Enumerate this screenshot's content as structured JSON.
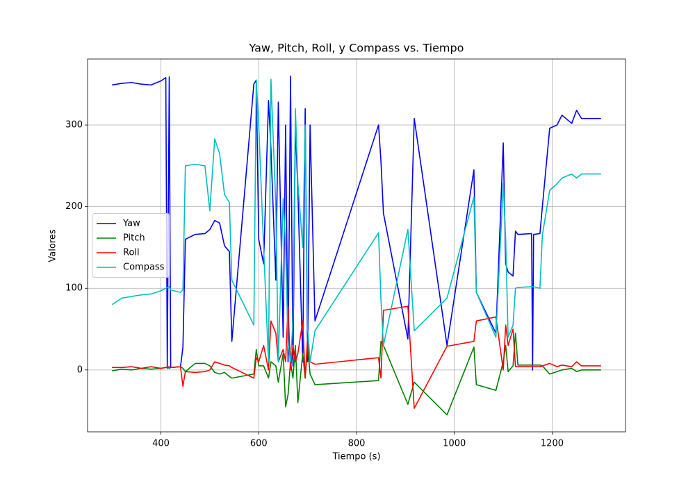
{
  "chart_data": {
    "type": "line",
    "title": "Yaw, Pitch, Roll, y Compass vs. Tiempo",
    "x_label": "Tiempo (s)",
    "y_label": "Valores",
    "x": [
      300,
      320,
      340,
      360,
      380,
      400,
      410,
      413,
      417,
      420,
      440,
      445,
      450,
      470,
      490,
      500,
      510,
      520,
      530,
      540,
      545,
      590,
      595,
      600,
      610,
      620,
      625,
      635,
      640,
      650,
      655,
      660,
      665,
      670,
      675,
      680,
      690,
      695,
      700,
      705,
      715,
      845,
      850,
      855,
      905,
      918,
      985,
      1040,
      1045,
      1085,
      1100,
      1105,
      1110,
      1120,
      1125,
      1130,
      1158,
      1160,
      1162,
      1175,
      1180,
      1195,
      1210,
      1220,
      1240,
      1250,
      1260,
      1300
    ],
    "series": [
      {
        "name": "Yaw",
        "color": "#0000ff",
        "values": [
          349,
          351,
          352,
          350,
          349,
          354,
          358,
          2,
          359,
          3,
          4,
          28,
          160,
          166,
          167,
          172,
          183,
          180,
          152,
          145,
          35,
          350,
          355,
          160,
          130,
          330,
          270,
          110,
          328,
          40,
          300,
          10,
          360,
          5,
          300,
          220,
          10,
          320,
          10,
          300,
          60,
          300,
          255,
          192,
          38,
          308,
          30,
          245,
          95,
          45,
          278,
          130,
          120,
          115,
          170,
          166,
          167,
          0,
          166,
          167,
          200,
          296,
          300,
          312,
          302,
          318,
          308,
          308
        ]
      },
      {
        "name": "Pitch",
        "color": "#008000",
        "values": [
          -1,
          1,
          0,
          2,
          1,
          2,
          3,
          4,
          2,
          3,
          4,
          2,
          -2,
          8,
          8,
          5,
          -3,
          -5,
          -3,
          -8,
          -10,
          -5,
          25,
          5,
          5,
          -10,
          10,
          5,
          -15,
          20,
          -45,
          -30,
          10,
          -10,
          30,
          -40,
          20,
          -10,
          30,
          -5,
          -18,
          -13,
          35,
          30,
          -42,
          -15,
          -55,
          28,
          -18,
          -25,
          10,
          30,
          -2,
          5,
          45,
          6,
          6,
          6,
          6,
          6,
          5,
          -5,
          -2,
          0,
          2,
          -2,
          0,
          0
        ]
      },
      {
        "name": "Roll",
        "color": "#ff0000",
        "values": [
          3,
          3,
          4,
          2,
          4,
          2,
          3,
          3,
          4,
          3,
          4,
          -20,
          -2,
          -3,
          -2,
          0,
          10,
          8,
          6,
          5,
          3,
          -10,
          15,
          10,
          30,
          0,
          60,
          45,
          10,
          25,
          10,
          78,
          0,
          30,
          10,
          20,
          60,
          -10,
          40,
          10,
          7,
          15,
          -10,
          73,
          78,
          -47,
          29,
          35,
          60,
          65,
          0,
          55,
          30,
          50,
          4,
          4,
          4,
          4,
          4,
          4,
          5,
          8,
          4,
          6,
          4,
          10,
          5,
          5
        ]
      },
      {
        "name": "Compass",
        "color": "#00bfbf",
        "values": [
          80,
          88,
          90,
          92,
          93,
          97,
          100,
          101,
          102,
          98,
          95,
          98,
          250,
          252,
          250,
          195,
          283,
          265,
          215,
          205,
          110,
          55,
          355,
          300,
          150,
          10,
          356,
          200,
          10,
          210,
          150,
          30,
          10,
          60,
          320,
          230,
          150,
          300,
          50,
          10,
          48,
          168,
          85,
          30,
          172,
          48,
          88,
          212,
          95,
          40,
          228,
          160,
          40,
          55,
          100,
          101,
          102,
          102,
          102,
          100,
          165,
          220,
          228,
          235,
          240,
          235,
          240,
          240
        ]
      }
    ],
    "xlim": [
      250,
      1350
    ],
    "ylim": [
      -75.8,
      380.8
    ],
    "xticks": [
      400,
      600,
      800,
      1000,
      1200
    ],
    "yticks": [
      0,
      100,
      200,
      300
    ],
    "grid": true,
    "legend": "center left"
  }
}
